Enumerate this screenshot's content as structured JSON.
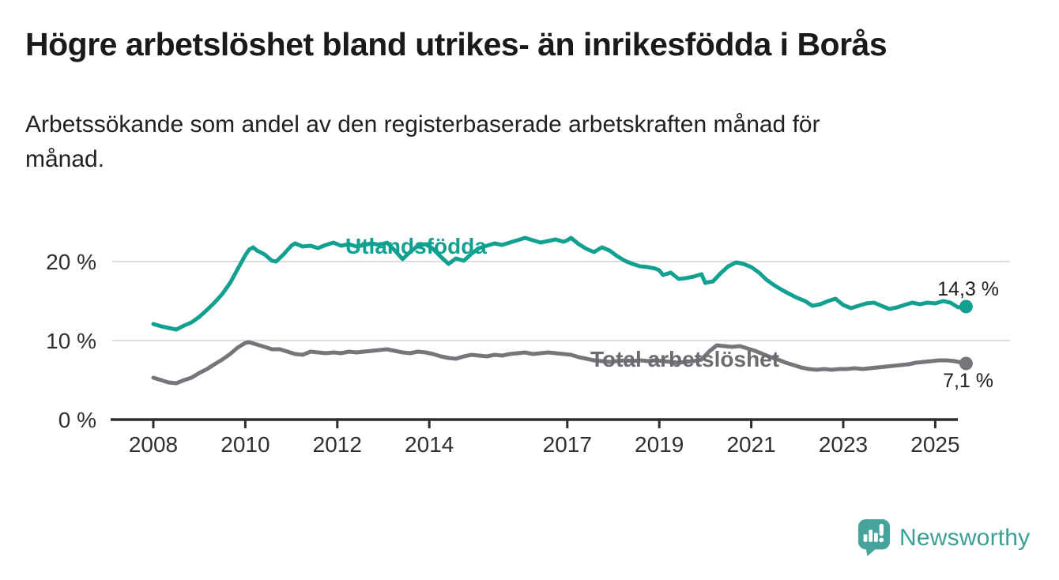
{
  "header": {
    "title": "Högre arbetslöshet bland utrikes- än inrikesfödda i Borås",
    "subtitle_line1": "Arbetssökande som andel av den registerbaserade arbetskraften månad för",
    "subtitle_line2": "månad."
  },
  "footer": {
    "brand": "Newsworthy",
    "brand_text_color": "#3aa096",
    "brand_icon_color": "#45a39b"
  },
  "chart_data": {
    "type": "line",
    "title": "Högre arbetslöshet bland utrikes- än inrikesfödda i Borås",
    "subtitle": "Arbetssökande som andel av den registerbaserade arbetskraften månad för månad.",
    "x_axis": {
      "ticks": [
        2008,
        2010,
        2012,
        2014,
        2017,
        2019,
        2021,
        2023,
        2025
      ],
      "tick_labels": [
        "2008",
        "2010",
        "2012",
        "2014",
        "2017",
        "2019",
        "2021",
        "2023",
        "2025"
      ],
      "range": [
        2008,
        2025.9
      ]
    },
    "y_axis": {
      "ticks": [
        0,
        10,
        20
      ],
      "tick_labels": [
        "0 %",
        "10 %",
        "20 %"
      ],
      "range": [
        0,
        24
      ],
      "grid": true
    },
    "axis_color": "#2d2d2d",
    "grid_color": "#dcdcdc",
    "tick_text_color": "#2f2f2f",
    "value_label_color": "#1d1d1d",
    "legend_position": "inline-labels",
    "series": [
      {
        "name": "Utlandsfödda",
        "color": "#12a191",
        "label_color": "#12a191",
        "end_value": 14.3,
        "end_label": "14,3 %",
        "points": [
          [
            2008.0,
            12.1
          ],
          [
            2008.17,
            11.8
          ],
          [
            2008.33,
            11.6
          ],
          [
            2008.5,
            11.4
          ],
          [
            2008.67,
            11.9
          ],
          [
            2008.83,
            12.3
          ],
          [
            2009.0,
            13.0
          ],
          [
            2009.17,
            13.9
          ],
          [
            2009.33,
            14.8
          ],
          [
            2009.5,
            15.9
          ],
          [
            2009.67,
            17.3
          ],
          [
            2009.83,
            19.0
          ],
          [
            2010.0,
            20.8
          ],
          [
            2010.08,
            21.5
          ],
          [
            2010.17,
            21.8
          ],
          [
            2010.25,
            21.4
          ],
          [
            2010.42,
            20.9
          ],
          [
            2010.58,
            20.1
          ],
          [
            2010.67,
            20.0
          ],
          [
            2010.83,
            20.9
          ],
          [
            2011.0,
            22.0
          ],
          [
            2011.08,
            22.3
          ],
          [
            2011.25,
            21.9
          ],
          [
            2011.42,
            22.0
          ],
          [
            2011.58,
            21.7
          ],
          [
            2011.75,
            22.1
          ],
          [
            2011.92,
            22.4
          ],
          [
            2012.08,
            22.0
          ],
          [
            2012.25,
            22.2
          ],
          [
            2012.42,
            21.9
          ],
          [
            2012.58,
            22.1
          ],
          [
            2012.75,
            22.3
          ],
          [
            2012.92,
            22.1
          ],
          [
            2013.08,
            22.4
          ],
          [
            2013.25,
            21.4
          ],
          [
            2013.42,
            20.3
          ],
          [
            2013.58,
            21.2
          ],
          [
            2013.75,
            22.0
          ],
          [
            2013.92,
            22.2
          ],
          [
            2014.08,
            21.6
          ],
          [
            2014.25,
            20.6
          ],
          [
            2014.42,
            19.7
          ],
          [
            2014.58,
            20.4
          ],
          [
            2014.75,
            20.1
          ],
          [
            2014.92,
            21.0
          ],
          [
            2015.08,
            21.7
          ],
          [
            2015.25,
            22.0
          ],
          [
            2015.42,
            22.3
          ],
          [
            2015.58,
            22.1
          ],
          [
            2015.75,
            22.4
          ],
          [
            2015.92,
            22.7
          ],
          [
            2016.08,
            23.0
          ],
          [
            2016.25,
            22.7
          ],
          [
            2016.42,
            22.4
          ],
          [
            2016.58,
            22.6
          ],
          [
            2016.75,
            22.8
          ],
          [
            2016.92,
            22.5
          ],
          [
            2017.0,
            22.7
          ],
          [
            2017.08,
            23.0
          ],
          [
            2017.25,
            22.2
          ],
          [
            2017.42,
            21.6
          ],
          [
            2017.58,
            21.2
          ],
          [
            2017.75,
            21.8
          ],
          [
            2017.92,
            21.4
          ],
          [
            2018.08,
            20.7
          ],
          [
            2018.25,
            20.1
          ],
          [
            2018.42,
            19.7
          ],
          [
            2018.58,
            19.4
          ],
          [
            2018.75,
            19.3
          ],
          [
            2018.92,
            19.1
          ],
          [
            2019.0,
            18.9
          ],
          [
            2019.08,
            18.3
          ],
          [
            2019.25,
            18.6
          ],
          [
            2019.42,
            17.8
          ],
          [
            2019.58,
            17.9
          ],
          [
            2019.75,
            18.1
          ],
          [
            2019.92,
            18.4
          ],
          [
            2020.0,
            17.3
          ],
          [
            2020.17,
            17.5
          ],
          [
            2020.33,
            18.5
          ],
          [
            2020.5,
            19.4
          ],
          [
            2020.67,
            19.9
          ],
          [
            2020.83,
            19.7
          ],
          [
            2021.0,
            19.3
          ],
          [
            2021.17,
            18.6
          ],
          [
            2021.33,
            17.7
          ],
          [
            2021.5,
            17.0
          ],
          [
            2021.67,
            16.4
          ],
          [
            2021.83,
            15.9
          ],
          [
            2022.0,
            15.4
          ],
          [
            2022.17,
            15.0
          ],
          [
            2022.33,
            14.4
          ],
          [
            2022.5,
            14.6
          ],
          [
            2022.67,
            15.0
          ],
          [
            2022.83,
            15.3
          ],
          [
            2023.0,
            14.5
          ],
          [
            2023.17,
            14.1
          ],
          [
            2023.33,
            14.4
          ],
          [
            2023.5,
            14.7
          ],
          [
            2023.67,
            14.8
          ],
          [
            2023.83,
            14.4
          ],
          [
            2024.0,
            14.0
          ],
          [
            2024.17,
            14.2
          ],
          [
            2024.33,
            14.5
          ],
          [
            2024.5,
            14.8
          ],
          [
            2024.67,
            14.6
          ],
          [
            2024.83,
            14.8
          ],
          [
            2025.0,
            14.7
          ],
          [
            2025.17,
            15.0
          ],
          [
            2025.33,
            14.8
          ],
          [
            2025.5,
            14.2
          ],
          [
            2025.67,
            14.3
          ]
        ]
      },
      {
        "name": "Total arbetslöshet",
        "color": "#75757a",
        "label_color": "#6b6b70",
        "end_value": 7.1,
        "end_label": "7,1 %",
        "points": [
          [
            2008.0,
            5.3
          ],
          [
            2008.17,
            5.0
          ],
          [
            2008.33,
            4.7
          ],
          [
            2008.5,
            4.6
          ],
          [
            2008.67,
            5.0
          ],
          [
            2008.83,
            5.3
          ],
          [
            2009.0,
            5.9
          ],
          [
            2009.17,
            6.4
          ],
          [
            2009.33,
            7.0
          ],
          [
            2009.5,
            7.6
          ],
          [
            2009.67,
            8.3
          ],
          [
            2009.83,
            9.1
          ],
          [
            2010.0,
            9.7
          ],
          [
            2010.08,
            9.8
          ],
          [
            2010.25,
            9.5
          ],
          [
            2010.42,
            9.2
          ],
          [
            2010.58,
            8.9
          ],
          [
            2010.75,
            8.9
          ],
          [
            2010.92,
            8.6
          ],
          [
            2011.08,
            8.3
          ],
          [
            2011.25,
            8.2
          ],
          [
            2011.42,
            8.6
          ],
          [
            2011.58,
            8.5
          ],
          [
            2011.75,
            8.4
          ],
          [
            2011.92,
            8.5
          ],
          [
            2012.08,
            8.4
          ],
          [
            2012.25,
            8.6
          ],
          [
            2012.42,
            8.5
          ],
          [
            2012.58,
            8.6
          ],
          [
            2012.75,
            8.7
          ],
          [
            2012.92,
            8.8
          ],
          [
            2013.08,
            8.9
          ],
          [
            2013.25,
            8.7
          ],
          [
            2013.42,
            8.5
          ],
          [
            2013.58,
            8.4
          ],
          [
            2013.75,
            8.6
          ],
          [
            2013.92,
            8.5
          ],
          [
            2014.08,
            8.3
          ],
          [
            2014.25,
            8.0
          ],
          [
            2014.42,
            7.8
          ],
          [
            2014.58,
            7.7
          ],
          [
            2014.75,
            8.0
          ],
          [
            2014.92,
            8.2
          ],
          [
            2015.08,
            8.1
          ],
          [
            2015.25,
            8.0
          ],
          [
            2015.42,
            8.2
          ],
          [
            2015.58,
            8.1
          ],
          [
            2015.75,
            8.3
          ],
          [
            2015.92,
            8.4
          ],
          [
            2016.08,
            8.5
          ],
          [
            2016.25,
            8.3
          ],
          [
            2016.42,
            8.4
          ],
          [
            2016.58,
            8.5
          ],
          [
            2016.75,
            8.4
          ],
          [
            2016.92,
            8.3
          ],
          [
            2017.08,
            8.2
          ],
          [
            2017.25,
            7.9
          ],
          [
            2017.42,
            7.7
          ],
          [
            2017.58,
            7.5
          ],
          [
            2017.75,
            7.4
          ],
          [
            2017.92,
            7.3
          ],
          [
            2018.08,
            7.4
          ],
          [
            2018.25,
            7.5
          ],
          [
            2018.42,
            7.4
          ],
          [
            2018.58,
            7.5
          ],
          [
            2018.75,
            7.4
          ],
          [
            2018.92,
            7.5
          ],
          [
            2019.08,
            7.4
          ],
          [
            2019.25,
            7.3
          ],
          [
            2019.42,
            7.2
          ],
          [
            2019.58,
            7.3
          ],
          [
            2019.75,
            7.4
          ],
          [
            2019.92,
            7.6
          ],
          [
            2020.08,
            8.6
          ],
          [
            2020.25,
            9.4
          ],
          [
            2020.42,
            9.3
          ],
          [
            2020.58,
            9.2
          ],
          [
            2020.75,
            9.3
          ],
          [
            2020.92,
            9.0
          ],
          [
            2021.08,
            8.7
          ],
          [
            2021.25,
            8.3
          ],
          [
            2021.42,
            7.9
          ],
          [
            2021.58,
            7.6
          ],
          [
            2021.75,
            7.2
          ],
          [
            2021.92,
            6.9
          ],
          [
            2022.08,
            6.6
          ],
          [
            2022.25,
            6.4
          ],
          [
            2022.42,
            6.3
          ],
          [
            2022.58,
            6.4
          ],
          [
            2022.75,
            6.3
          ],
          [
            2022.92,
            6.4
          ],
          [
            2023.08,
            6.4
          ],
          [
            2023.25,
            6.5
          ],
          [
            2023.42,
            6.4
          ],
          [
            2023.58,
            6.5
          ],
          [
            2023.75,
            6.6
          ],
          [
            2023.92,
            6.7
          ],
          [
            2024.08,
            6.8
          ],
          [
            2024.25,
            6.9
          ],
          [
            2024.42,
            7.0
          ],
          [
            2024.58,
            7.2
          ],
          [
            2024.75,
            7.3
          ],
          [
            2024.92,
            7.4
          ],
          [
            2025.08,
            7.5
          ],
          [
            2025.25,
            7.5
          ],
          [
            2025.42,
            7.4
          ],
          [
            2025.58,
            7.2
          ],
          [
            2025.67,
            7.1
          ]
        ]
      }
    ]
  }
}
